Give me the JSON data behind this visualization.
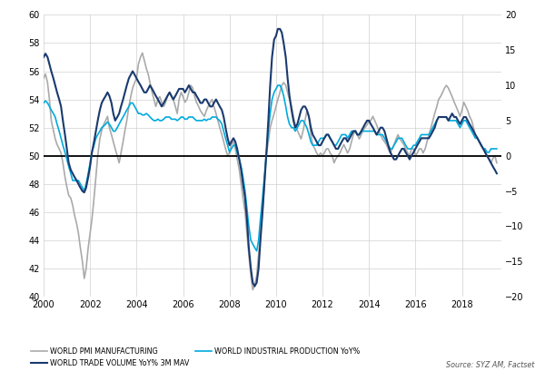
{
  "title": "",
  "left_ylim": [
    40,
    60
  ],
  "right_ylim": [
    -20,
    20
  ],
  "left_yticks": [
    40,
    42,
    44,
    46,
    48,
    50,
    52,
    54,
    56,
    58,
    60
  ],
  "right_yticks": [
    -20,
    -15,
    -10,
    -5,
    0,
    5,
    10,
    15,
    20
  ],
  "hline_pmi": 50,
  "xlim": [
    2000,
    2019.7
  ],
  "xticks": [
    2000,
    2002,
    2004,
    2006,
    2008,
    2010,
    2012,
    2014,
    2016,
    2018
  ],
  "source_text": "Source: SYZ AM, Factset",
  "legend": [
    {
      "label": "WORLD PMI MANUFACTURING",
      "color": "#aaaaaa",
      "lw": 1.2
    },
    {
      "label": "WORLD TRADE VOLUME YoY% 3M MAV",
      "color": "#1a3a6e",
      "lw": 1.5
    },
    {
      "label": "WORLD INDUSTRIAL PRODUCTION YoY%",
      "color": "#00aadd",
      "lw": 1.2
    }
  ],
  "pmi_data": {
    "dates": [
      2000.0,
      2000.08,
      2000.17,
      2000.25,
      2000.33,
      2000.42,
      2000.5,
      2000.58,
      2000.67,
      2000.75,
      2000.83,
      2000.92,
      2001.0,
      2001.08,
      2001.17,
      2001.25,
      2001.33,
      2001.42,
      2001.5,
      2001.58,
      2001.67,
      2001.75,
      2001.83,
      2001.92,
      2002.0,
      2002.08,
      2002.17,
      2002.25,
      2002.33,
      2002.42,
      2002.5,
      2002.58,
      2002.67,
      2002.75,
      2002.83,
      2002.92,
      2003.0,
      2003.08,
      2003.17,
      2003.25,
      2003.33,
      2003.42,
      2003.5,
      2003.58,
      2003.67,
      2003.75,
      2003.83,
      2003.92,
      2004.0,
      2004.08,
      2004.17,
      2004.25,
      2004.33,
      2004.42,
      2004.5,
      2004.58,
      2004.67,
      2004.75,
      2004.83,
      2004.92,
      2005.0,
      2005.08,
      2005.17,
      2005.25,
      2005.33,
      2005.42,
      2005.5,
      2005.58,
      2005.67,
      2005.75,
      2005.83,
      2005.92,
      2006.0,
      2006.08,
      2006.17,
      2006.25,
      2006.33,
      2006.42,
      2006.5,
      2006.58,
      2006.67,
      2006.75,
      2006.83,
      2006.92,
      2007.0,
      2007.08,
      2007.17,
      2007.25,
      2007.33,
      2007.42,
      2007.5,
      2007.58,
      2007.67,
      2007.75,
      2007.83,
      2007.92,
      2008.0,
      2008.08,
      2008.17,
      2008.25,
      2008.33,
      2008.42,
      2008.5,
      2008.58,
      2008.67,
      2008.75,
      2008.83,
      2008.92,
      2009.0,
      2009.08,
      2009.17,
      2009.25,
      2009.33,
      2009.42,
      2009.5,
      2009.58,
      2009.67,
      2009.75,
      2009.83,
      2009.92,
      2010.0,
      2010.08,
      2010.17,
      2010.25,
      2010.33,
      2010.42,
      2010.5,
      2010.58,
      2010.67,
      2010.75,
      2010.83,
      2010.92,
      2011.0,
      2011.08,
      2011.17,
      2011.25,
      2011.33,
      2011.42,
      2011.5,
      2011.58,
      2011.67,
      2011.75,
      2011.83,
      2011.92,
      2012.0,
      2012.08,
      2012.17,
      2012.25,
      2012.33,
      2012.42,
      2012.5,
      2012.58,
      2012.67,
      2012.75,
      2012.83,
      2012.92,
      2013.0,
      2013.08,
      2013.17,
      2013.25,
      2013.33,
      2013.42,
      2013.5,
      2013.58,
      2013.67,
      2013.75,
      2013.83,
      2013.92,
      2014.0,
      2014.08,
      2014.17,
      2014.25,
      2014.33,
      2014.42,
      2014.5,
      2014.58,
      2014.67,
      2014.75,
      2014.83,
      2014.92,
      2015.0,
      2015.08,
      2015.17,
      2015.25,
      2015.33,
      2015.42,
      2015.5,
      2015.58,
      2015.67,
      2015.75,
      2015.83,
      2015.92,
      2016.0,
      2016.08,
      2016.17,
      2016.25,
      2016.33,
      2016.42,
      2016.5,
      2016.58,
      2016.67,
      2016.75,
      2016.83,
      2016.92,
      2017.0,
      2017.08,
      2017.17,
      2017.25,
      2017.33,
      2017.42,
      2017.5,
      2017.58,
      2017.67,
      2017.75,
      2017.83,
      2017.92,
      2018.0,
      2018.08,
      2018.17,
      2018.25,
      2018.33,
      2018.42,
      2018.5,
      2018.58,
      2018.67,
      2018.75,
      2018.83,
      2018.92,
      2019.0,
      2019.08,
      2019.17,
      2019.25,
      2019.33,
      2019.42,
      2019.5
    ],
    "values": [
      55.5,
      55.8,
      55.2,
      54.0,
      52.5,
      51.8,
      51.2,
      50.8,
      50.5,
      50.2,
      49.5,
      48.5,
      47.8,
      47.2,
      47.0,
      46.5,
      45.8,
      45.2,
      44.5,
      43.5,
      42.5,
      41.3,
      42.0,
      43.5,
      44.5,
      45.5,
      47.0,
      48.5,
      50.0,
      51.2,
      51.8,
      52.2,
      52.5,
      52.8,
      52.0,
      51.5,
      51.0,
      50.5,
      50.0,
      49.5,
      50.2,
      51.0,
      51.8,
      52.5,
      53.5,
      54.2,
      54.8,
      55.2,
      55.5,
      56.5,
      57.0,
      57.3,
      56.8,
      56.2,
      55.8,
      55.2,
      54.5,
      54.0,
      53.5,
      54.0,
      54.2,
      53.8,
      53.5,
      53.8,
      54.2,
      54.5,
      54.2,
      54.0,
      53.5,
      53.0,
      54.0,
      54.5,
      54.2,
      53.8,
      54.0,
      54.5,
      55.0,
      54.8,
      54.2,
      53.8,
      53.5,
      53.2,
      53.0,
      52.8,
      53.2,
      53.5,
      53.8,
      54.0,
      53.5,
      53.0,
      52.5,
      52.0,
      51.5,
      51.0,
      50.5,
      50.0,
      50.2,
      50.8,
      51.0,
      50.5,
      49.8,
      49.0,
      48.0,
      47.0,
      46.0,
      44.5,
      43.0,
      41.5,
      40.5,
      40.8,
      41.5,
      43.0,
      44.5,
      46.0,
      48.0,
      50.0,
      51.0,
      52.0,
      52.5,
      53.0,
      53.5,
      54.0,
      54.5,
      55.0,
      55.2,
      55.0,
      54.5,
      54.0,
      53.5,
      52.8,
      52.2,
      51.8,
      51.5,
      51.2,
      51.8,
      52.5,
      53.2,
      52.8,
      51.5,
      50.8,
      50.5,
      50.2,
      50.0,
      50.2,
      50.0,
      50.2,
      50.5,
      50.5,
      50.2,
      50.0,
      49.5,
      49.8,
      50.0,
      50.2,
      50.5,
      50.8,
      50.5,
      50.2,
      50.5,
      51.0,
      51.5,
      51.8,
      51.5,
      51.2,
      51.5,
      51.8,
      52.0,
      52.2,
      52.5,
      52.5,
      52.8,
      52.5,
      52.2,
      51.8,
      51.5,
      51.2,
      51.0,
      50.8,
      50.5,
      50.2,
      50.5,
      50.8,
      51.2,
      51.5,
      51.2,
      51.0,
      50.8,
      50.5,
      50.2,
      50.0,
      50.5,
      50.5,
      50.0,
      50.2,
      50.5,
      50.5,
      50.2,
      50.5,
      51.0,
      51.5,
      52.0,
      52.5,
      53.0,
      53.5,
      54.0,
      54.2,
      54.5,
      54.8,
      55.0,
      54.8,
      54.5,
      54.2,
      53.8,
      53.5,
      53.2,
      52.8,
      53.2,
      53.8,
      53.5,
      53.2,
      52.8,
      52.5,
      52.0,
      51.5,
      51.2,
      51.0,
      50.8,
      50.5,
      50.2,
      50.0,
      49.8,
      49.5,
      49.8,
      50.0,
      49.5
    ]
  },
  "trade_data": {
    "dates": [
      2000.0,
      2000.08,
      2000.17,
      2000.25,
      2000.33,
      2000.42,
      2000.5,
      2000.58,
      2000.67,
      2000.75,
      2000.83,
      2000.92,
      2001.0,
      2001.08,
      2001.17,
      2001.25,
      2001.33,
      2001.42,
      2001.5,
      2001.58,
      2001.67,
      2001.75,
      2001.83,
      2001.92,
      2002.0,
      2002.08,
      2002.17,
      2002.25,
      2002.33,
      2002.42,
      2002.5,
      2002.58,
      2002.67,
      2002.75,
      2002.83,
      2002.92,
      2003.0,
      2003.08,
      2003.17,
      2003.25,
      2003.33,
      2003.42,
      2003.5,
      2003.58,
      2003.67,
      2003.75,
      2003.83,
      2003.92,
      2004.0,
      2004.08,
      2004.17,
      2004.25,
      2004.33,
      2004.42,
      2004.5,
      2004.58,
      2004.67,
      2004.75,
      2004.83,
      2004.92,
      2005.0,
      2005.08,
      2005.17,
      2005.25,
      2005.33,
      2005.42,
      2005.5,
      2005.58,
      2005.67,
      2005.75,
      2005.83,
      2005.92,
      2006.0,
      2006.08,
      2006.17,
      2006.25,
      2006.33,
      2006.42,
      2006.5,
      2006.58,
      2006.67,
      2006.75,
      2006.83,
      2006.92,
      2007.0,
      2007.08,
      2007.17,
      2007.25,
      2007.33,
      2007.42,
      2007.5,
      2007.58,
      2007.67,
      2007.75,
      2007.83,
      2007.92,
      2008.0,
      2008.08,
      2008.17,
      2008.25,
      2008.33,
      2008.42,
      2008.5,
      2008.58,
      2008.67,
      2008.75,
      2008.83,
      2008.92,
      2009.0,
      2009.08,
      2009.17,
      2009.25,
      2009.33,
      2009.42,
      2009.5,
      2009.58,
      2009.67,
      2009.75,
      2009.83,
      2009.92,
      2010.0,
      2010.08,
      2010.17,
      2010.25,
      2010.33,
      2010.42,
      2010.5,
      2010.58,
      2010.67,
      2010.75,
      2010.83,
      2010.92,
      2011.0,
      2011.08,
      2011.17,
      2011.25,
      2011.33,
      2011.42,
      2011.5,
      2011.58,
      2011.67,
      2011.75,
      2011.83,
      2011.92,
      2012.0,
      2012.08,
      2012.17,
      2012.25,
      2012.33,
      2012.42,
      2012.5,
      2012.58,
      2012.67,
      2012.75,
      2012.83,
      2012.92,
      2013.0,
      2013.08,
      2013.17,
      2013.25,
      2013.33,
      2013.42,
      2013.5,
      2013.58,
      2013.67,
      2013.75,
      2013.83,
      2013.92,
      2014.0,
      2014.08,
      2014.17,
      2014.25,
      2014.33,
      2014.42,
      2014.5,
      2014.58,
      2014.67,
      2014.75,
      2014.83,
      2014.92,
      2015.0,
      2015.08,
      2015.17,
      2015.25,
      2015.33,
      2015.42,
      2015.5,
      2015.58,
      2015.67,
      2015.75,
      2015.83,
      2015.92,
      2016.0,
      2016.08,
      2016.17,
      2016.25,
      2016.33,
      2016.42,
      2016.5,
      2016.58,
      2016.67,
      2016.75,
      2016.83,
      2016.92,
      2017.0,
      2017.08,
      2017.17,
      2017.25,
      2017.33,
      2017.42,
      2017.5,
      2017.58,
      2017.67,
      2017.75,
      2017.83,
      2017.92,
      2018.0,
      2018.08,
      2018.17,
      2018.25,
      2018.33,
      2018.42,
      2018.5,
      2018.58,
      2018.67,
      2018.75,
      2018.83,
      2018.92,
      2019.0,
      2019.08,
      2019.17,
      2019.25,
      2019.33,
      2019.42,
      2019.5
    ],
    "values": [
      14.0,
      14.5,
      14.0,
      13.0,
      12.0,
      11.0,
      10.0,
      9.0,
      8.0,
      7.0,
      5.0,
      3.0,
      1.0,
      -1.0,
      -2.0,
      -2.5,
      -3.0,
      -3.5,
      -4.0,
      -4.5,
      -5.0,
      -5.2,
      -4.5,
      -3.0,
      -1.5,
      0.5,
      2.0,
      3.5,
      5.0,
      6.5,
      7.5,
      8.0,
      8.5,
      9.0,
      8.5,
      7.5,
      6.0,
      5.0,
      5.5,
      6.0,
      7.0,
      8.0,
      9.0,
      10.0,
      11.0,
      11.5,
      12.0,
      11.5,
      11.0,
      10.5,
      10.0,
      9.5,
      9.0,
      9.0,
      9.5,
      10.0,
      9.5,
      9.0,
      8.5,
      8.0,
      7.5,
      7.0,
      7.5,
      8.0,
      8.5,
      9.0,
      8.5,
      8.0,
      8.5,
      9.0,
      9.5,
      9.5,
      9.5,
      9.0,
      9.5,
      10.0,
      9.5,
      9.0,
      9.0,
      8.5,
      8.0,
      7.5,
      7.5,
      8.0,
      8.0,
      7.5,
      7.0,
      7.0,
      7.5,
      8.0,
      7.5,
      7.0,
      6.5,
      5.5,
      4.0,
      2.5,
      1.5,
      2.0,
      2.5,
      2.0,
      1.0,
      -0.5,
      -2.0,
      -4.0,
      -6.0,
      -9.0,
      -13.0,
      -16.0,
      -18.0,
      -18.5,
      -18.0,
      -16.0,
      -12.0,
      -8.0,
      -4.0,
      0.0,
      5.0,
      10.0,
      14.0,
      16.5,
      17.0,
      18.0,
      18.0,
      17.5,
      16.0,
      14.0,
      11.0,
      8.5,
      6.5,
      5.0,
      4.0,
      4.5,
      5.5,
      6.5,
      7.0,
      7.0,
      6.5,
      5.5,
      4.0,
      3.0,
      2.5,
      2.0,
      1.5,
      1.5,
      2.0,
      2.5,
      3.0,
      3.0,
      2.5,
      2.0,
      1.5,
      1.0,
      1.0,
      1.5,
      2.0,
      2.5,
      2.5,
      2.0,
      2.5,
      3.0,
      3.5,
      3.5,
      3.0,
      3.0,
      3.5,
      4.0,
      4.5,
      5.0,
      5.0,
      4.5,
      4.0,
      3.5,
      3.0,
      3.5,
      4.0,
      4.0,
      3.5,
      2.5,
      1.5,
      0.5,
      0.0,
      -0.5,
      -0.5,
      0.0,
      0.5,
      1.0,
      1.0,
      0.5,
      0.0,
      -0.5,
      0.0,
      0.5,
      1.0,
      1.5,
      2.0,
      2.5,
      2.5,
      2.5,
      2.5,
      2.5,
      3.0,
      3.5,
      4.0,
      5.0,
      5.5,
      5.5,
      5.5,
      5.5,
      5.5,
      5.0,
      5.5,
      6.0,
      5.5,
      5.5,
      5.0,
      4.5,
      5.0,
      5.5,
      5.5,
      5.0,
      4.5,
      4.0,
      3.5,
      3.0,
      2.5,
      2.0,
      1.5,
      1.0,
      0.5,
      0.0,
      -0.5,
      -1.0,
      -1.5,
      -2.0,
      -2.5
    ]
  },
  "indprod_data": {
    "dates": [
      2000.0,
      2000.08,
      2000.17,
      2000.25,
      2000.33,
      2000.42,
      2000.5,
      2000.58,
      2000.67,
      2000.75,
      2000.83,
      2000.92,
      2001.0,
      2001.08,
      2001.17,
      2001.25,
      2001.33,
      2001.42,
      2001.5,
      2001.58,
      2001.67,
      2001.75,
      2001.83,
      2001.92,
      2002.0,
      2002.08,
      2002.17,
      2002.25,
      2002.33,
      2002.42,
      2002.5,
      2002.58,
      2002.67,
      2002.75,
      2002.83,
      2002.92,
      2003.0,
      2003.08,
      2003.17,
      2003.25,
      2003.33,
      2003.42,
      2003.5,
      2003.58,
      2003.67,
      2003.75,
      2003.83,
      2003.92,
      2004.0,
      2004.08,
      2004.17,
      2004.25,
      2004.33,
      2004.42,
      2004.5,
      2004.58,
      2004.67,
      2004.75,
      2004.83,
      2004.92,
      2005.0,
      2005.08,
      2005.17,
      2005.25,
      2005.33,
      2005.42,
      2005.5,
      2005.58,
      2005.67,
      2005.75,
      2005.83,
      2005.92,
      2006.0,
      2006.08,
      2006.17,
      2006.25,
      2006.33,
      2006.42,
      2006.5,
      2006.58,
      2006.67,
      2006.75,
      2006.83,
      2006.92,
      2007.0,
      2007.08,
      2007.17,
      2007.25,
      2007.33,
      2007.42,
      2007.5,
      2007.58,
      2007.67,
      2007.75,
      2007.83,
      2007.92,
      2008.0,
      2008.08,
      2008.17,
      2008.25,
      2008.33,
      2008.42,
      2008.5,
      2008.58,
      2008.67,
      2008.75,
      2008.83,
      2008.92,
      2009.0,
      2009.08,
      2009.17,
      2009.25,
      2009.33,
      2009.42,
      2009.5,
      2009.58,
      2009.67,
      2009.75,
      2009.83,
      2009.92,
      2010.0,
      2010.08,
      2010.17,
      2010.25,
      2010.33,
      2010.42,
      2010.5,
      2010.58,
      2010.67,
      2010.75,
      2010.83,
      2010.92,
      2011.0,
      2011.08,
      2011.17,
      2011.25,
      2011.33,
      2011.42,
      2011.5,
      2011.58,
      2011.67,
      2011.75,
      2011.83,
      2011.92,
      2012.0,
      2012.08,
      2012.17,
      2012.25,
      2012.33,
      2012.42,
      2012.5,
      2012.58,
      2012.67,
      2012.75,
      2012.83,
      2012.92,
      2013.0,
      2013.08,
      2013.17,
      2013.25,
      2013.33,
      2013.42,
      2013.5,
      2013.58,
      2013.67,
      2013.75,
      2013.83,
      2013.92,
      2014.0,
      2014.08,
      2014.17,
      2014.25,
      2014.33,
      2014.42,
      2014.5,
      2014.58,
      2014.67,
      2014.75,
      2014.83,
      2014.92,
      2015.0,
      2015.08,
      2015.17,
      2015.25,
      2015.33,
      2015.42,
      2015.5,
      2015.58,
      2015.67,
      2015.75,
      2015.83,
      2015.92,
      2016.0,
      2016.08,
      2016.17,
      2016.25,
      2016.33,
      2016.42,
      2016.5,
      2016.58,
      2016.67,
      2016.75,
      2016.83,
      2016.92,
      2017.0,
      2017.08,
      2017.17,
      2017.25,
      2017.33,
      2017.42,
      2017.5,
      2017.58,
      2017.67,
      2017.75,
      2017.83,
      2017.92,
      2018.0,
      2018.08,
      2018.17,
      2018.25,
      2018.33,
      2018.42,
      2018.5,
      2018.58,
      2018.67,
      2018.75,
      2018.83,
      2018.92,
      2019.0,
      2019.08,
      2019.17,
      2019.25,
      2019.33,
      2019.42,
      2019.5
    ],
    "values": [
      7.5,
      7.8,
      7.5,
      7.0,
      6.5,
      6.0,
      5.5,
      4.5,
      3.5,
      2.5,
      1.5,
      0.5,
      -0.5,
      -1.5,
      -2.5,
      -3.5,
      -3.5,
      -3.5,
      -3.5,
      -4.0,
      -4.5,
      -5.0,
      -4.0,
      -2.5,
      -1.0,
      0.5,
      1.5,
      2.5,
      3.0,
      3.5,
      4.0,
      4.2,
      4.5,
      4.8,
      4.5,
      4.0,
      3.5,
      3.5,
      4.0,
      4.5,
      5.0,
      5.5,
      6.0,
      6.5,
      7.0,
      7.5,
      7.5,
      7.0,
      6.5,
      6.0,
      6.0,
      5.8,
      5.8,
      6.0,
      5.8,
      5.5,
      5.2,
      5.0,
      5.0,
      5.2,
      5.0,
      5.0,
      5.2,
      5.5,
      5.5,
      5.5,
      5.2,
      5.2,
      5.2,
      5.0,
      5.2,
      5.5,
      5.5,
      5.2,
      5.2,
      5.5,
      5.5,
      5.5,
      5.2,
      5.0,
      5.0,
      5.0,
      5.0,
      5.2,
      5.0,
      5.2,
      5.2,
      5.5,
      5.5,
      5.5,
      5.2,
      5.0,
      4.5,
      3.5,
      2.5,
      1.5,
      0.5,
      1.0,
      1.5,
      1.5,
      0.5,
      -0.5,
      -1.5,
      -3.0,
      -5.0,
      -7.5,
      -10.0,
      -12.0,
      -12.5,
      -13.0,
      -13.5,
      -12.0,
      -9.0,
      -6.0,
      -3.0,
      0.0,
      3.5,
      6.0,
      8.0,
      9.0,
      9.5,
      10.0,
      10.0,
      9.5,
      8.5,
      7.0,
      5.5,
      4.5,
      4.0,
      4.0,
      3.5,
      4.0,
      4.5,
      5.0,
      5.0,
      4.5,
      4.0,
      3.0,
      2.0,
      1.5,
      1.5,
      1.5,
      2.0,
      2.5,
      2.5,
      2.5,
      3.0,
      3.0,
      2.5,
      2.0,
      1.5,
      1.5,
      2.0,
      2.5,
      3.0,
      3.0,
      3.0,
      2.5,
      3.0,
      3.5,
      3.5,
      3.5,
      3.0,
      3.0,
      3.5,
      3.5,
      3.5,
      3.5,
      3.5,
      3.5,
      3.5,
      3.5,
      3.0,
      3.0,
      3.0,
      3.0,
      2.5,
      2.0,
      1.5,
      1.0,
      1.0,
      1.5,
      2.0,
      2.5,
      2.5,
      2.5,
      2.0,
      1.5,
      1.0,
      1.0,
      1.0,
      1.5,
      1.5,
      2.0,
      2.5,
      3.0,
      3.0,
      3.0,
      3.0,
      3.0,
      3.5,
      4.0,
      4.5,
      5.0,
      5.5,
      5.5,
      5.5,
      5.5,
      5.5,
      5.0,
      5.0,
      5.0,
      5.0,
      5.0,
      4.5,
      4.0,
      4.5,
      5.0,
      5.0,
      4.5,
      4.0,
      3.5,
      3.0,
      2.5,
      2.5,
      2.0,
      1.5,
      1.0,
      1.0,
      0.5,
      0.5,
      1.0,
      1.0,
      1.0,
      1.0
    ]
  }
}
